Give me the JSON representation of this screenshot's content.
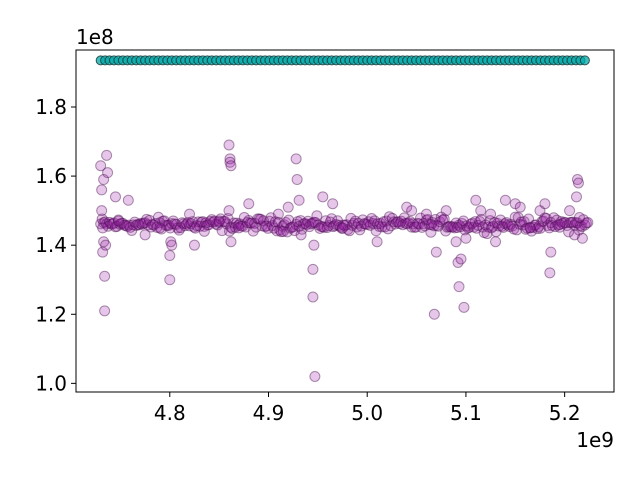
{
  "chart_data": {
    "type": "scatter",
    "title": "",
    "xlabel": "",
    "ylabel": "",
    "x_offset_label": "1e9",
    "y_offset_label": "1e8",
    "xlim": [
      4.705,
      5.25
    ],
    "ylim": [
      0.975,
      1.965
    ],
    "x_ticks": [
      {
        "value": 4.8,
        "label": "4.8"
      },
      {
        "value": 4.9,
        "label": "4.9"
      },
      {
        "value": 5.0,
        "label": "5.0"
      },
      {
        "value": 5.1,
        "label": "5.1"
      },
      {
        "value": 5.2,
        "label": "5.2"
      }
    ],
    "y_ticks": [
      {
        "value": 1.0,
        "label": "1.0"
      },
      {
        "value": 1.2,
        "label": "1.2"
      },
      {
        "value": 1.4,
        "label": "1.4"
      },
      {
        "value": 1.6,
        "label": "1.6"
      },
      {
        "value": 1.8,
        "label": "1.8"
      }
    ],
    "grid": false,
    "series": [
      {
        "color": "#00a8a8",
        "edge_color": "#1a3a3a",
        "alpha": 0.75,
        "x_start": 4.73,
        "x_end": 5.222,
        "x_step": 0.0045,
        "y_constant": 1.935
      },
      {
        "color": "#9b1fa8",
        "edge_color": "#4a0d50",
        "alpha": 0.25,
        "x_start": 4.73,
        "x_end": 5.224,
        "x_step": 0.0015,
        "y_band": [
          1.42,
          1.5
        ],
        "outliers": [
          [
            4.73,
            1.63
          ],
          [
            4.731,
            1.56
          ],
          [
            4.731,
            1.5
          ],
          [
            4.732,
            1.45
          ],
          [
            4.732,
            1.38
          ],
          [
            4.733,
            1.41
          ],
          [
            4.733,
            1.59
          ],
          [
            4.734,
            1.31
          ],
          [
            4.734,
            1.21
          ],
          [
            4.735,
            1.4
          ],
          [
            4.736,
            1.66
          ],
          [
            4.737,
            1.61
          ],
          [
            4.745,
            1.54
          ],
          [
            4.748,
            1.47
          ],
          [
            4.758,
            1.53
          ],
          [
            4.775,
            1.43
          ],
          [
            4.79,
            1.45
          ],
          [
            4.8,
            1.37
          ],
          [
            4.801,
            1.41
          ],
          [
            4.802,
            1.4
          ],
          [
            4.8,
            1.3
          ],
          [
            4.82,
            1.49
          ],
          [
            4.825,
            1.4
          ],
          [
            4.835,
            1.44
          ],
          [
            4.85,
            1.47
          ],
          [
            4.86,
            1.69
          ],
          [
            4.861,
            1.65
          ],
          [
            4.861,
            1.64
          ],
          [
            4.862,
            1.63
          ],
          [
            4.86,
            1.5
          ],
          [
            4.862,
            1.41
          ],
          [
            4.87,
            1.45
          ],
          [
            4.88,
            1.52
          ],
          [
            4.91,
            1.49
          ],
          [
            4.915,
            1.44
          ],
          [
            4.92,
            1.51
          ],
          [
            4.928,
            1.65
          ],
          [
            4.929,
            1.59
          ],
          [
            4.931,
            1.53
          ],
          [
            4.933,
            1.43
          ],
          [
            4.945,
            1.33
          ],
          [
            4.945,
            1.25
          ],
          [
            4.946,
            1.4
          ],
          [
            4.947,
            1.02
          ],
          [
            4.955,
            1.54
          ],
          [
            4.965,
            1.52
          ],
          [
            4.975,
            1.45
          ],
          [
            5.01,
            1.41
          ],
          [
            5.04,
            1.51
          ],
          [
            5.045,
            1.5
          ],
          [
            5.06,
            1.49
          ],
          [
            5.065,
            1.46
          ],
          [
            5.068,
            1.2
          ],
          [
            5.07,
            1.38
          ],
          [
            5.08,
            1.5
          ],
          [
            5.09,
            1.41
          ],
          [
            5.092,
            1.35
          ],
          [
            5.093,
            1.28
          ],
          [
            5.095,
            1.36
          ],
          [
            5.098,
            1.22
          ],
          [
            5.1,
            1.42
          ],
          [
            5.11,
            1.53
          ],
          [
            5.115,
            1.5
          ],
          [
            5.125,
            1.49
          ],
          [
            5.13,
            1.41
          ],
          [
            5.14,
            1.53
          ],
          [
            5.15,
            1.52
          ],
          [
            5.155,
            1.51
          ],
          [
            5.165,
            1.45
          ],
          [
            5.175,
            1.5
          ],
          [
            5.18,
            1.52
          ],
          [
            5.185,
            1.32
          ],
          [
            5.186,
            1.38
          ],
          [
            5.195,
            1.46
          ],
          [
            5.205,
            1.5
          ],
          [
            5.21,
            1.43
          ],
          [
            5.212,
            1.54
          ],
          [
            5.213,
            1.59
          ],
          [
            5.214,
            1.58
          ],
          [
            5.215,
            1.48
          ],
          [
            5.218,
            1.42
          ]
        ]
      }
    ]
  }
}
